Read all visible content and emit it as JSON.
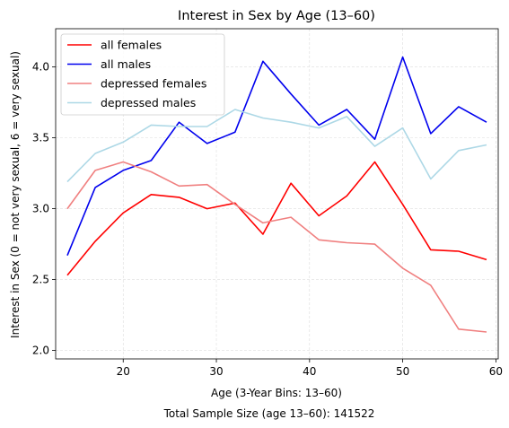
{
  "chart_data": {
    "type": "line",
    "title": "Interest in Sex by Age (13–60)",
    "xlabel": "Age (3-Year Bins: 13–60)",
    "ylabel": "Interest in Sex (0 = not very sexual, 6 = very sexual)",
    "footer": "Total Sample Size (age 13–60): 141522",
    "xlim": [
      12.75,
      60.25
    ],
    "ylim": [
      1.94,
      4.27
    ],
    "xticks": [
      20,
      30,
      40,
      50,
      60
    ],
    "yticks": [
      2.0,
      2.5,
      3.0,
      3.5,
      4.0
    ],
    "ytick_labels": [
      "2.0",
      "2.5",
      "3.0",
      "3.5",
      "4.0"
    ],
    "grid": true,
    "legend_position": "top-left",
    "x": [
      14,
      17,
      20,
      23,
      26,
      29,
      32,
      35,
      38,
      41,
      44,
      47,
      50,
      53,
      56,
      59
    ],
    "series": [
      {
        "name": "all females",
        "color": "#ff0000",
        "values": [
          2.53,
          2.77,
          2.97,
          3.1,
          3.08,
          3.0,
          3.04,
          2.82,
          3.18,
          2.95,
          3.09,
          3.33,
          3.03,
          2.71,
          2.7,
          2.64
        ]
      },
      {
        "name": "all males",
        "color": "#0000ee",
        "values": [
          2.67,
          3.15,
          3.27,
          3.34,
          3.61,
          3.46,
          3.54,
          4.04,
          3.81,
          3.59,
          3.7,
          3.49,
          4.07,
          3.53,
          3.72,
          3.61
        ]
      },
      {
        "name": "depressed females",
        "color": "#f08080",
        "values": [
          3.0,
          3.27,
          3.33,
          3.26,
          3.16,
          3.17,
          3.03,
          2.9,
          2.94,
          2.78,
          2.76,
          2.75,
          2.58,
          2.46,
          2.15,
          2.13
        ]
      },
      {
        "name": "depressed males",
        "color": "#add8e6",
        "values": [
          3.19,
          3.39,
          3.47,
          3.59,
          3.58,
          3.58,
          3.7,
          3.64,
          3.61,
          3.57,
          3.65,
          3.44,
          3.57,
          3.21,
          3.41,
          3.45
        ]
      }
    ]
  }
}
